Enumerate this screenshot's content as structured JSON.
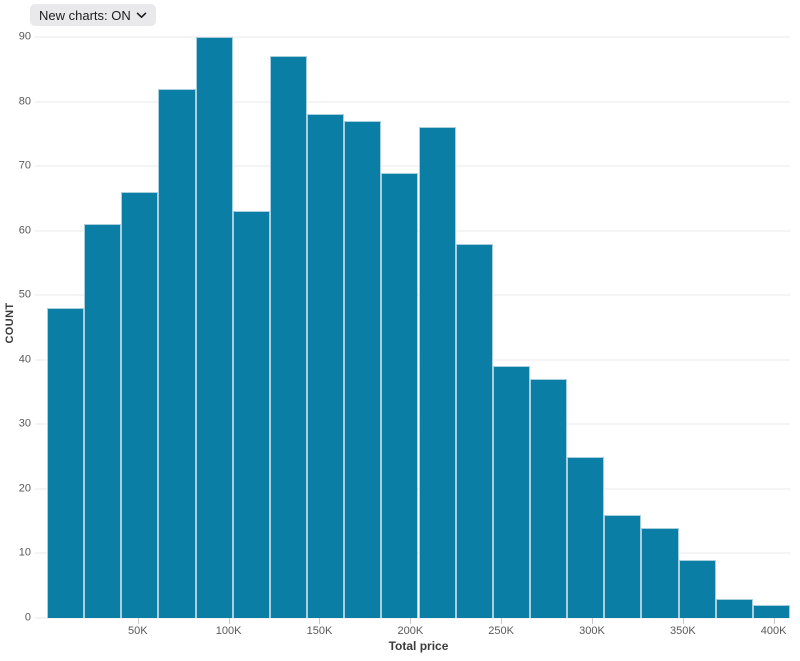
{
  "toolbar": {
    "new_charts_label": "New charts: ON"
  },
  "colors": {
    "bar_fill": "#0a7ea4",
    "bar_stroke": "#a9cfdf",
    "gridline": "#e9e9e9",
    "tick_text": "#595959",
    "axis_label_text": "#3c3c3c",
    "chip_bg": "#e9e9eb",
    "chip_text": "#1d1d1f"
  },
  "chart_data": {
    "type": "bar",
    "subtype": "histogram",
    "title": "",
    "xlabel": "Total price",
    "ylabel": "COUNT",
    "bin_width_k": 20,
    "bin_edges_k": [
      0,
      20,
      40,
      60,
      80,
      100,
      120,
      140,
      160,
      180,
      200,
      220,
      240,
      260,
      280,
      300,
      320,
      340,
      360,
      380,
      400
    ],
    "values": [
      48,
      61,
      66,
      82,
      90,
      63,
      87,
      78,
      77,
      69,
      76,
      58,
      39,
      37,
      25,
      16,
      14,
      9,
      3,
      2
    ],
    "y_ticks": [
      0,
      10,
      20,
      30,
      40,
      50,
      60,
      70,
      80,
      90
    ],
    "ylim": [
      0,
      90
    ],
    "x_ticks": [
      {
        "label": "50K",
        "value_k": 50
      },
      {
        "label": "100K",
        "value_k": 100
      },
      {
        "label": "150K",
        "value_k": 150
      },
      {
        "label": "200K",
        "value_k": 200
      },
      {
        "label": "250K",
        "value_k": 250
      },
      {
        "label": "300K",
        "value_k": 300
      },
      {
        "label": "350K",
        "value_k": 350
      },
      {
        "label": "400K",
        "value_k": 400
      }
    ],
    "x_domain_k": [
      0,
      409
    ],
    "grid": "horizontal",
    "legend": "none"
  }
}
